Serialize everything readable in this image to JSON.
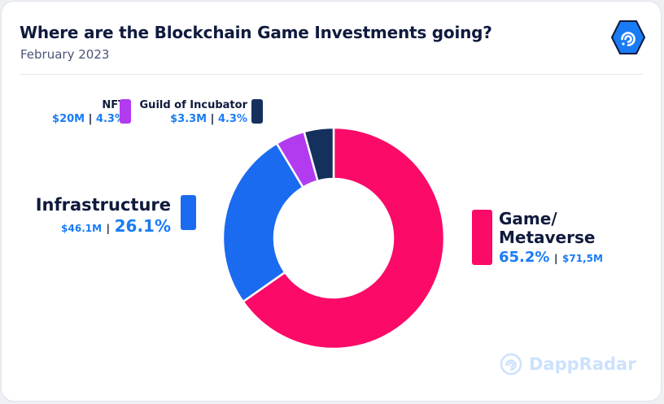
{
  "header": {
    "title": "Where are the Blockchain Game Investments going?",
    "subtitle": "February 2023"
  },
  "watermark": {
    "brand": "DappRadar",
    "icon": "dappradar-logo-icon"
  },
  "colors": {
    "game_metaverse": "#fb0a68",
    "infrastructure": "#1a6bf0",
    "nft": "#b23bef",
    "guild_of_incubator": "#14305d",
    "value_text": "#1a7cf5",
    "title_text": "#0f1a3d"
  },
  "chart_data": {
    "type": "pie",
    "donut": true,
    "title": "Where are the Blockchain Game Investments going?",
    "subtitle": "February 2023",
    "slices": [
      {
        "label": "Game/ Metaverse",
        "line1": "Game/",
        "line2": "Metaverse",
        "percent": 65.2,
        "percent_text": "65.2%",
        "amount_text": "$71,5M",
        "color": "#fb0a68"
      },
      {
        "label": "Infrastructure",
        "percent": 26.1,
        "percent_text": "26.1%",
        "amount_text": "$46.1M",
        "color": "#1a6bf0"
      },
      {
        "label": "NFT",
        "percent": 4.3,
        "percent_text": "4.3%",
        "amount_text": "$20M",
        "color": "#b23bef"
      },
      {
        "label": "Guild of Incubator",
        "percent": 4.3,
        "percent_text": "4.3%",
        "amount_text": "$3.3M",
        "color": "#14305d"
      }
    ]
  }
}
